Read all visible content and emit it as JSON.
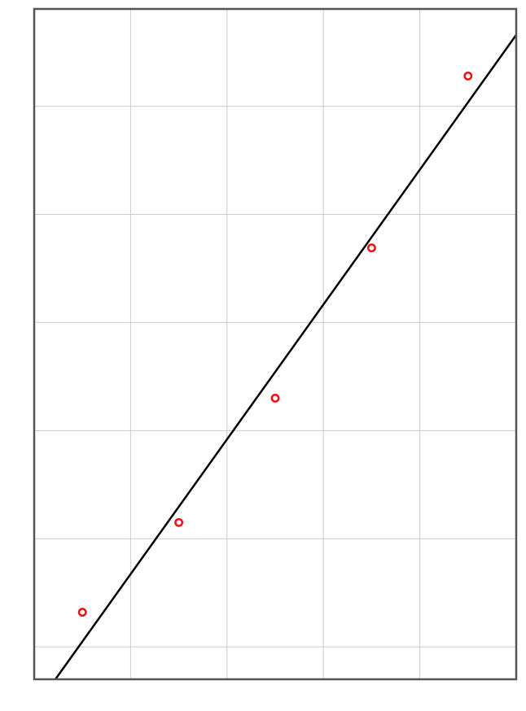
{
  "chart_data": {
    "type": "scatter",
    "title": "",
    "xlabel": "",
    "ylabel": "",
    "xlim": [
      0,
      5
    ],
    "ylim": [
      0,
      6.2
    ],
    "x_grid": [
      1,
      2,
      3,
      4
    ],
    "y_grid": [
      0.3,
      1.3,
      2.3,
      3.3,
      4.3,
      5.3
    ],
    "grid": true,
    "series": [
      {
        "type": "scatter",
        "marker": "open-circle",
        "color": "#ee1111",
        "x": [
          0.5,
          1.5,
          2.5,
          3.5,
          4.5
        ],
        "y": [
          0.62,
          1.45,
          2.6,
          3.99,
          5.58
        ]
      },
      {
        "type": "line",
        "color": "#000000",
        "x": [
          0.22,
          5.0
        ],
        "y": [
          0.0,
          5.96
        ]
      }
    ]
  }
}
